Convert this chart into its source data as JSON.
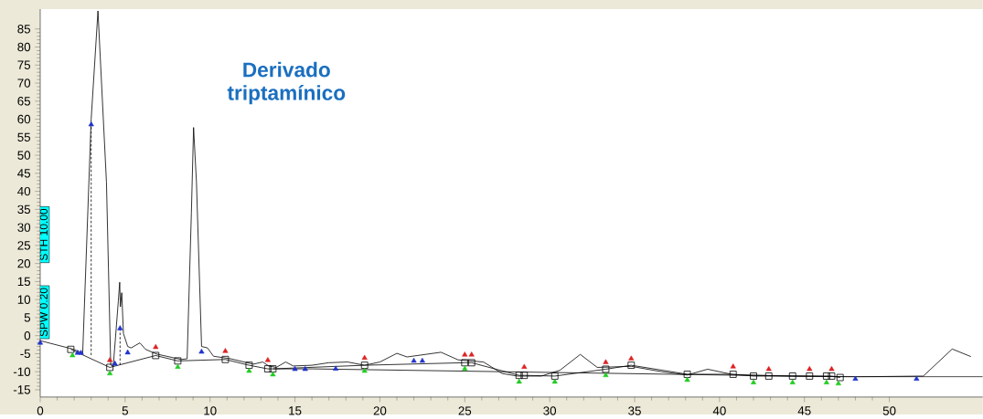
{
  "chart_data": {
    "type": "line",
    "annotations": [
      "Derivado triptamínico",
      "STH 10.00",
      "SPW 0.20"
    ],
    "xlim": [
      0,
      55.5
    ],
    "ylim": [
      -17,
      90.5
    ],
    "xticks": [
      0,
      5,
      10,
      15,
      20,
      25,
      30,
      35,
      40,
      45,
      50
    ],
    "yticks": [
      -15,
      -10,
      -5,
      0,
      5,
      10,
      15,
      20,
      25,
      30,
      35,
      40,
      45,
      50,
      55,
      60,
      65,
      70,
      75,
      80,
      85
    ],
    "grid": false,
    "series": [
      {
        "color": "#000000",
        "marker": "none",
        "line_style": "solid",
        "x": [
          0,
          1.9,
          2.4,
          2.5,
          3.0,
          3.4,
          3.9,
          4.15,
          4.3,
          4.6,
          4.68,
          4.72,
          4.8,
          4.9,
          5.15,
          5.35,
          5.87,
          6.2,
          6.86,
          8.3,
          8.65,
          8.9,
          9.03,
          9.2,
          9.5,
          9.85,
          10.2,
          11.2,
          12.55,
          13.1,
          13.45,
          13.9,
          14.45,
          14.9,
          16.0,
          17.0,
          18.1,
          19.1,
          20.0,
          21.0,
          21.6,
          23.6,
          24.6,
          26.1,
          27.2,
          28.1,
          29.5,
          30.6,
          31.8,
          32.8,
          34.8,
          36.6,
          38.1,
          39.3,
          40.8,
          44.3,
          48.1,
          52.0,
          53.7,
          54.8
        ],
        "values": [
          -1.4,
          -3.7,
          -4.6,
          -5,
          60,
          90,
          42.5,
          -8.1,
          -8.5,
          9.6,
          14.8,
          8,
          11.9,
          0.6,
          -3.0,
          -3.4,
          -2.0,
          -3.8,
          -5.1,
          -6.6,
          -6.4,
          34,
          57.7,
          42.5,
          -3.0,
          -3.4,
          -5.7,
          -6.4,
          -7.9,
          -7.3,
          -8.4,
          -8.8,
          -7.3,
          -8.4,
          -8.2,
          -7.5,
          -7.3,
          -8.2,
          -7.3,
          -4.9,
          -5.9,
          -4.6,
          -6.7,
          -7.3,
          -10.5,
          -11.2,
          -11.2,
          -9.6,
          -5.2,
          -8.8,
          -8.5,
          -10.0,
          -10.9,
          -9.3,
          -10.8,
          -11.2,
          -11.4,
          -11.2,
          -3.7,
          -5.8
        ]
      },
      {
        "color": "#000000",
        "marker": "square",
        "line_style": "solid",
        "x": [
          1.8,
          4.1,
          6.8,
          8.1,
          10.9,
          12.3,
          13.4,
          13.7,
          19.1,
          25.0,
          25.4,
          28.2,
          28.5,
          30.3,
          33.3,
          34.8,
          38.1,
          40.8,
          42.0,
          42.9,
          44.3,
          45.3,
          46.3,
          46.6,
          47.1
        ],
        "values": [
          -3.8,
          -8.8,
          -5.5,
          -7.0,
          -6.6,
          -8.2,
          -9.2,
          -9.2,
          -8.2,
          -7.5,
          -7.5,
          -11.0,
          -11.0,
          -11.2,
          -9.3,
          -8.2,
          -10.7,
          -10.7,
          -11.2,
          -11.2,
          -11.2,
          -11.2,
          -11.2,
          -11.2,
          -11.6
        ]
      },
      {
        "color": "#000000",
        "marker": "none",
        "line_style": "solid",
        "x": [
          13.7,
          16.0,
          47.1,
          55.5
        ],
        "values": [
          -9.2,
          -9.2,
          -11.4,
          -11.4
        ]
      },
      {
        "color": "#000000",
        "marker": "none",
        "line_style": "dashed",
        "x": [
          3.0,
          3.0
        ],
        "values": [
          59,
          -5.5
        ]
      },
      {
        "color": "#000000",
        "marker": "none",
        "line_style": "dashed",
        "x": [
          4.7,
          4.7
        ],
        "values": [
          2,
          -8.2
        ]
      },
      {
        "type": "scatter",
        "color": "#22cc22",
        "marker": "triangle",
        "x": [
          1.9,
          4.1,
          8.1,
          12.3,
          13.7,
          19.1,
          25.0,
          28.2,
          30.3,
          33.3,
          38.1,
          42.0,
          44.3,
          46.3,
          47.0
        ],
        "values": [
          -5.5,
          -10.5,
          -8.7,
          -9.8,
          -10.8,
          -9.8,
          -9.2,
          -12.8,
          -12.8,
          -11,
          -12.3,
          -13,
          -13,
          -13,
          -13.3
        ]
      },
      {
        "type": "scatter",
        "color": "#dd2222",
        "marker": "triangle",
        "x": [
          4.1,
          6.8,
          10.9,
          13.4,
          19.1,
          25.0,
          25.4,
          28.5,
          33.3,
          34.8,
          40.8,
          42.9,
          45.3,
          46.6
        ],
        "values": [
          -6.8,
          -3.2,
          -4.3,
          -6.8,
          -6.2,
          -5.3,
          -5.3,
          -8.7,
          -7.4,
          -6.4,
          -8.6,
          -9.3,
          -9.3,
          -9.3
        ]
      },
      {
        "type": "scatter",
        "color": "#2233cc",
        "marker": "triangle",
        "x": [
          0,
          2.2,
          2.4,
          3.0,
          4.4,
          4.7,
          5.15,
          9.5,
          15.0,
          15.6,
          17.4,
          22.0,
          22.5,
          48.0,
          51.6
        ],
        "values": [
          -2,
          -4.8,
          -4.8,
          58.5,
          -7.8,
          2,
          -4.7,
          -4.5,
          -9.3,
          -9.3,
          -9.2,
          -7,
          -7,
          -12,
          -12
        ]
      }
    ]
  }
}
